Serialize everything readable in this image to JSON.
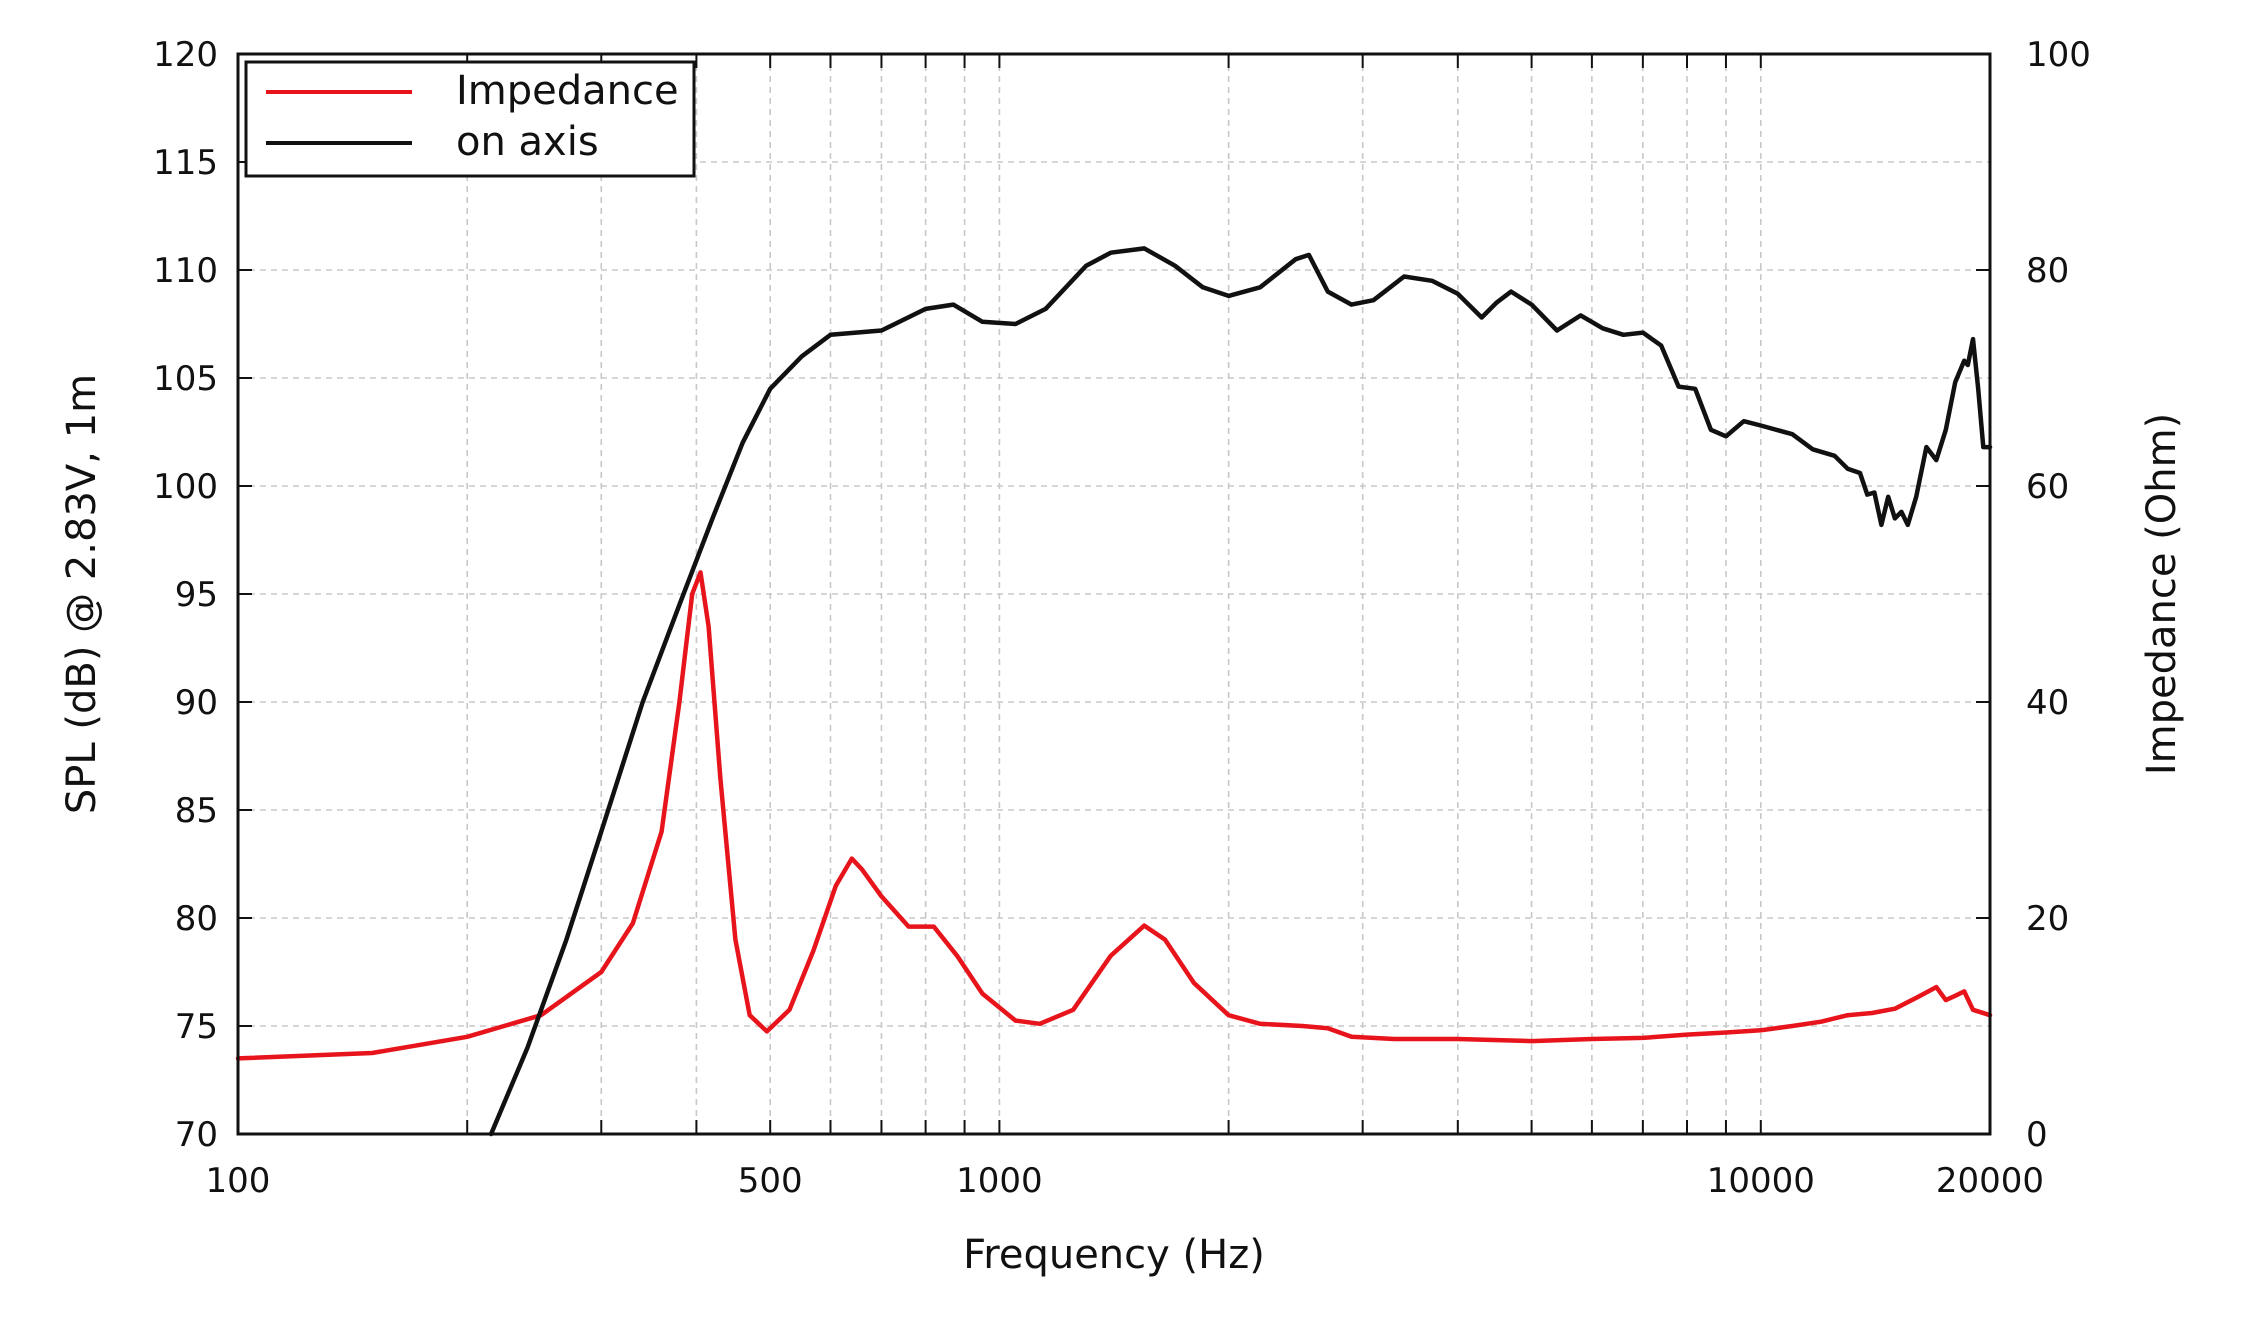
{
  "chart_data": {
    "type": "line",
    "xscale": "log",
    "xlabel": "Frequency (Hz)",
    "ylabel_left": "SPL (dB) @ 2.83V, 1m",
    "ylabel_right": "Impedance (Ohm)",
    "xlim": [
      100,
      20000
    ],
    "ylim_left": [
      70,
      120
    ],
    "ylim_right": [
      0,
      100
    ],
    "grid": true,
    "legend_position": "top-left",
    "x_ticks": [
      {
        "value": 100,
        "label": "100"
      },
      {
        "value": 500,
        "label": "500"
      },
      {
        "value": 1000,
        "label": "1000"
      },
      {
        "value": 10000,
        "label": "10000"
      },
      {
        "value": 20000,
        "label": "20000"
      }
    ],
    "x_minor_ticks": [
      200,
      300,
      400,
      600,
      700,
      800,
      900,
      2000,
      3000,
      4000,
      5000,
      6000,
      7000,
      8000,
      9000
    ],
    "y_left_ticks": [
      "70",
      "75",
      "80",
      "85",
      "90",
      "95",
      "100",
      "105",
      "110",
      "115",
      "120"
    ],
    "y_right_ticks": [
      "0",
      "20",
      "40",
      "60",
      "80",
      "100"
    ],
    "series": [
      {
        "name": "Impedance",
        "color": "#e8141c",
        "axis": "right",
        "points": [
          [
            100,
            7.0
          ],
          [
            150,
            7.5
          ],
          [
            200,
            9.0
          ],
          [
            250,
            11.0
          ],
          [
            300,
            15.0
          ],
          [
            330,
            19.5
          ],
          [
            360,
            28.0
          ],
          [
            380,
            40.0
          ],
          [
            395,
            50.0
          ],
          [
            405,
            52.0
          ],
          [
            415,
            47.0
          ],
          [
            430,
            33.0
          ],
          [
            450,
            18.0
          ],
          [
            470,
            11.0
          ],
          [
            495,
            9.5
          ],
          [
            530,
            11.5
          ],
          [
            570,
            17.0
          ],
          [
            610,
            23.0
          ],
          [
            640,
            25.5
          ],
          [
            660,
            24.5
          ],
          [
            700,
            22.0
          ],
          [
            760,
            19.2
          ],
          [
            820,
            19.2
          ],
          [
            880,
            16.5
          ],
          [
            950,
            13.0
          ],
          [
            1050,
            10.5
          ],
          [
            1130,
            10.2
          ],
          [
            1250,
            11.5
          ],
          [
            1400,
            16.5
          ],
          [
            1550,
            19.3
          ],
          [
            1650,
            18.0
          ],
          [
            1800,
            14.0
          ],
          [
            2000,
            11.0
          ],
          [
            2200,
            10.2
          ],
          [
            2500,
            10.0
          ],
          [
            2700,
            9.8
          ],
          [
            2900,
            9.0
          ],
          [
            3300,
            8.8
          ],
          [
            4000,
            8.8
          ],
          [
            5000,
            8.6
          ],
          [
            6000,
            8.8
          ],
          [
            7000,
            8.9
          ],
          [
            8000,
            9.2
          ],
          [
            9000,
            9.4
          ],
          [
            10000,
            9.6
          ],
          [
            11000,
            10.0
          ],
          [
            12000,
            10.4
          ],
          [
            13000,
            11.0
          ],
          [
            14000,
            11.2
          ],
          [
            15000,
            11.6
          ],
          [
            16000,
            12.6
          ],
          [
            17000,
            13.6
          ],
          [
            17500,
            12.4
          ],
          [
            18000,
            12.8
          ],
          [
            18500,
            13.2
          ],
          [
            19000,
            11.5
          ],
          [
            20000,
            11.0
          ]
        ]
      },
      {
        "name": "on axis",
        "color": "#111111",
        "axis": "left",
        "points": [
          [
            215,
            70.0
          ],
          [
            240,
            74.0
          ],
          [
            270,
            79.0
          ],
          [
            300,
            84.0
          ],
          [
            340,
            90.0
          ],
          [
            380,
            94.5
          ],
          [
            420,
            98.5
          ],
          [
            460,
            102.0
          ],
          [
            500,
            104.5
          ],
          [
            550,
            106.0
          ],
          [
            600,
            107.0
          ],
          [
            700,
            107.2
          ],
          [
            800,
            108.2
          ],
          [
            870,
            108.4
          ],
          [
            950,
            107.6
          ],
          [
            1050,
            107.5
          ],
          [
            1150,
            108.2
          ],
          [
            1300,
            110.2
          ],
          [
            1400,
            110.8
          ],
          [
            1550,
            111.0
          ],
          [
            1700,
            110.2
          ],
          [
            1850,
            109.2
          ],
          [
            2000,
            108.8
          ],
          [
            2200,
            109.2
          ],
          [
            2450,
            110.5
          ],
          [
            2550,
            110.7
          ],
          [
            2700,
            109.0
          ],
          [
            2900,
            108.4
          ],
          [
            3100,
            108.6
          ],
          [
            3400,
            109.7
          ],
          [
            3700,
            109.5
          ],
          [
            4000,
            108.9
          ],
          [
            4300,
            107.8
          ],
          [
            4500,
            108.5
          ],
          [
            4700,
            109.0
          ],
          [
            5000,
            108.4
          ],
          [
            5400,
            107.2
          ],
          [
            5800,
            107.9
          ],
          [
            6200,
            107.3
          ],
          [
            6600,
            107.0
          ],
          [
            7000,
            107.1
          ],
          [
            7400,
            106.5
          ],
          [
            7800,
            104.6
          ],
          [
            8200,
            104.5
          ],
          [
            8600,
            102.6
          ],
          [
            9000,
            102.3
          ],
          [
            9500,
            103.0
          ],
          [
            10000,
            102.8
          ],
          [
            11000,
            102.4
          ],
          [
            11700,
            101.7
          ],
          [
            12500,
            101.4
          ],
          [
            13000,
            100.8
          ],
          [
            13500,
            100.6
          ],
          [
            13800,
            99.6
          ],
          [
            14100,
            99.7
          ],
          [
            14400,
            98.2
          ],
          [
            14700,
            99.5
          ],
          [
            15000,
            98.5
          ],
          [
            15300,
            98.8
          ],
          [
            15600,
            98.2
          ],
          [
            16000,
            99.5
          ],
          [
            16500,
            101.8
          ],
          [
            17000,
            101.2
          ],
          [
            17500,
            102.6
          ],
          [
            18000,
            104.8
          ],
          [
            18500,
            105.8
          ],
          [
            18700,
            105.6
          ],
          [
            19000,
            106.8
          ],
          [
            19300,
            104.5
          ],
          [
            19600,
            101.8
          ],
          [
            20000,
            101.8
          ]
        ]
      }
    ]
  }
}
